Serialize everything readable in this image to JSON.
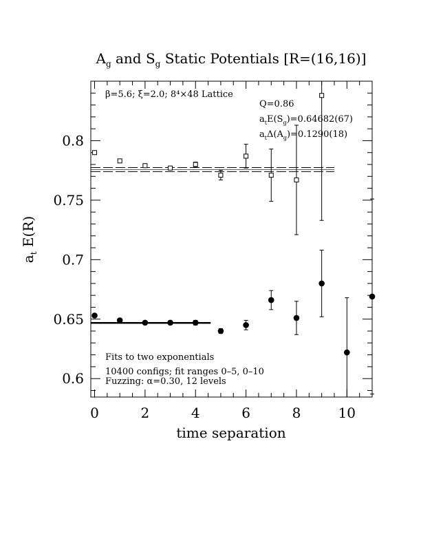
{
  "chart_data": {
    "type": "scatter",
    "title": {
      "a": "A",
      "a_sub": "g",
      "mid": " and ",
      "s": "S",
      "s_sub": "g",
      "rest": " Static Potentials [R=(16,16)]"
    },
    "xlabel": "time separation",
    "ylabel": {
      "main": "a",
      "sub": "t",
      "rest": " E(R)"
    },
    "xlim": [
      -0.15,
      11.0
    ],
    "ylim": [
      0.5845,
      0.85
    ],
    "xticks": [
      0,
      2,
      4,
      6,
      8,
      10
    ],
    "xtick_labels": [
      "0",
      "2",
      "4",
      "6",
      "8",
      "10"
    ],
    "yticks": [
      0.6,
      0.65,
      0.7,
      0.75,
      0.8
    ],
    "ytick_labels": [
      "0.6",
      "0.65",
      "0.7",
      "0.75",
      "0.8"
    ],
    "x_minor_step": 0.5,
    "y_minor_step": 0.01,
    "grid": false,
    "annotations": {
      "lattice": "β=5.6; ξ=2.0; 8⁴×48 Lattice",
      "q": "Q=0.86",
      "energy_a": "a",
      "energy_a_sub": "t",
      "energy_mid": "E(S",
      "energy_sub2": "g",
      "energy_end": ")=0.64682(67)",
      "gap_a": "a",
      "gap_a_sub": "t",
      "gap_mid": "Δ(A",
      "gap_sub2": "g",
      "gap_end": ")=0.1290(18)",
      "fit_line1": "Fits to two exponentials",
      "fit_line2": "10400 configs; fit ranges 0–5, 0–10",
      "fit_line3": "Fuzzing: α=0.30, 12 levels"
    },
    "series": [
      {
        "marker": "open-square",
        "points": [
          {
            "x": 0,
            "y": 0.79,
            "err": 0.0015
          },
          {
            "x": 1,
            "y": 0.783,
            "err": 0.0015
          },
          {
            "x": 2,
            "y": 0.779,
            "err": 0.0015
          },
          {
            "x": 3,
            "y": 0.777,
            "err": 0.0015
          },
          {
            "x": 4,
            "y": 0.78,
            "err": 0.002
          },
          {
            "x": 5,
            "y": 0.771,
            "err": 0.004
          },
          {
            "x": 6,
            "y": 0.787,
            "err": 0.01
          },
          {
            "x": 7,
            "y": 0.771,
            "err": 0.022
          },
          {
            "x": 8,
            "y": 0.767,
            "err": 0.046
          },
          {
            "x": 9,
            "y": 0.838,
            "err": 0.105
          }
        ]
      },
      {
        "marker": "filled-circle",
        "points": [
          {
            "x": 0,
            "y": 0.653,
            "err": 0.0015
          },
          {
            "x": 1,
            "y": 0.649,
            "err": 0.0015
          },
          {
            "x": 2,
            "y": 0.647,
            "err": 0.0015
          },
          {
            "x": 3,
            "y": 0.647,
            "err": 0.0015
          },
          {
            "x": 4,
            "y": 0.647,
            "err": 0.002
          },
          {
            "x": 5,
            "y": 0.64,
            "err": 0.002
          },
          {
            "x": 6,
            "y": 0.645,
            "err": 0.004
          },
          {
            "x": 7,
            "y": 0.666,
            "err": 0.008
          },
          {
            "x": 8,
            "y": 0.651,
            "err": 0.014
          },
          {
            "x": 9,
            "y": 0.68,
            "err": 0.028
          },
          {
            "x": 10,
            "y": 0.622,
            "err": 0.046
          },
          {
            "x": 11,
            "y": 0.669,
            "err": 0.082
          }
        ]
      }
    ],
    "fits": [
      {
        "style": "double-dashed",
        "x_range": [
          -0.15,
          9.5
        ],
        "y": 0.7757,
        "band": 0.0017
      },
      {
        "style": "solid-thick",
        "x_range": [
          -0.15,
          4.6
        ],
        "y": 0.64682,
        "band": 0.0007
      }
    ]
  }
}
